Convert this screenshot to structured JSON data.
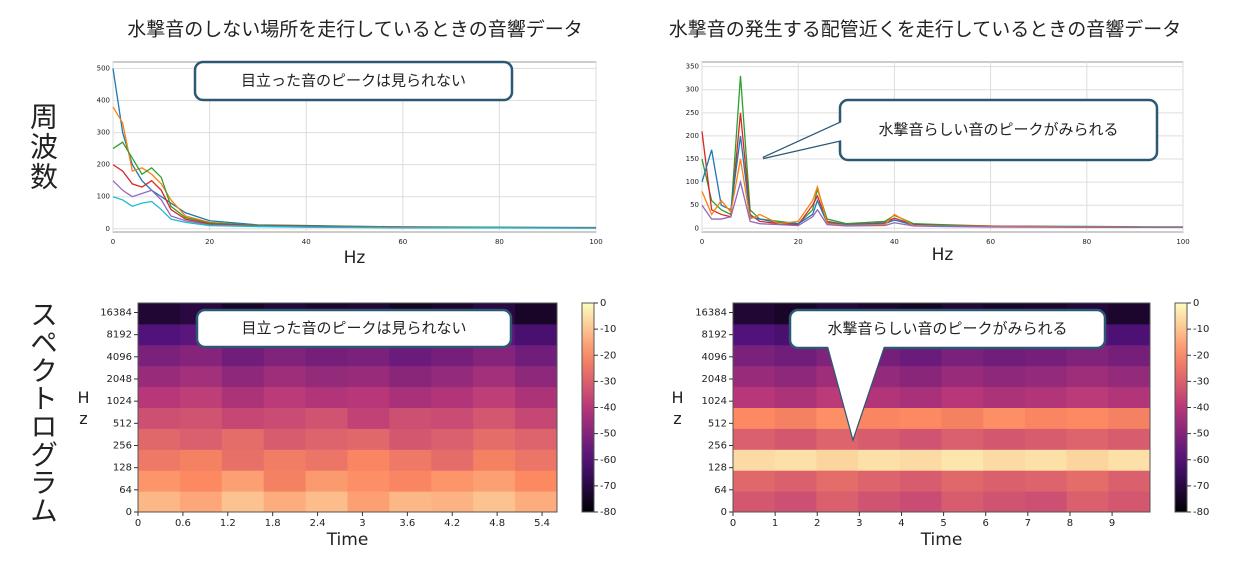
{
  "chart_data": [
    {
      "type": "line",
      "title": "水撃音のしない場所を走行しているときの音響データ",
      "xlabel": "Hz",
      "annotation": "目立った音のピークは見られない",
      "xlim": [
        0,
        100
      ],
      "ylim": [
        -10,
        520
      ],
      "xticks": [
        0,
        20,
        40,
        60,
        80,
        100
      ],
      "yticks": [
        0,
        100,
        200,
        300,
        400,
        500
      ],
      "grid": true,
      "x": [
        0,
        2,
        4,
        6,
        8,
        10,
        12,
        15,
        20,
        30,
        40,
        50,
        60,
        80,
        100
      ],
      "series": [
        {
          "color": "#1f77b4",
          "values": [
            500,
            300,
            200,
            150,
            120,
            100,
            80,
            50,
            25,
            12,
            10,
            8,
            6,
            5,
            4
          ]
        },
        {
          "color": "#ff7f0e",
          "values": [
            380,
            330,
            180,
            190,
            170,
            140,
            90,
            40,
            20,
            10,
            8,
            7,
            6,
            4,
            3
          ]
        },
        {
          "color": "#2ca02c",
          "values": [
            250,
            270,
            220,
            170,
            190,
            160,
            70,
            35,
            18,
            11,
            9,
            7,
            5,
            4,
            3
          ]
        },
        {
          "color": "#d62728",
          "values": [
            200,
            180,
            140,
            130,
            150,
            120,
            60,
            30,
            15,
            9,
            8,
            6,
            5,
            3,
            3
          ]
        },
        {
          "color": "#9467bd",
          "values": [
            150,
            120,
            100,
            110,
            120,
            90,
            40,
            25,
            12,
            8,
            6,
            5,
            4,
            3,
            2
          ]
        },
        {
          "color": "#17becf",
          "values": [
            100,
            90,
            70,
            80,
            85,
            60,
            30,
            20,
            10,
            7,
            5,
            4,
            3,
            3,
            2
          ]
        }
      ]
    },
    {
      "type": "line",
      "title": "水撃音の発生する配管近くを走行しているときの音響データ",
      "xlabel": "Hz",
      "annotation": "水撃音らしい音のピークがみられる",
      "xlim": [
        0,
        100
      ],
      "ylim": [
        -8,
        360
      ],
      "xticks": [
        0,
        20,
        40,
        60,
        80,
        100
      ],
      "yticks": [
        0,
        50,
        100,
        150,
        200,
        250,
        300,
        350
      ],
      "grid": true,
      "x": [
        0,
        2,
        4,
        6,
        8,
        10,
        12,
        16,
        20,
        23,
        24,
        26,
        30,
        38,
        40,
        44,
        50,
        60,
        80,
        100
      ],
      "series": [
        {
          "color": "#2ca02c",
          "values": [
            150,
            60,
            40,
            30,
            330,
            40,
            20,
            15,
            10,
            40,
            85,
            20,
            10,
            15,
            28,
            10,
            8,
            5,
            4,
            3
          ]
        },
        {
          "color": "#d62728",
          "values": [
            210,
            40,
            30,
            25,
            250,
            30,
            15,
            10,
            8,
            50,
            70,
            15,
            8,
            12,
            22,
            8,
            6,
            5,
            3,
            2
          ]
        },
        {
          "color": "#1f77b4",
          "values": [
            100,
            170,
            50,
            40,
            200,
            25,
            20,
            12,
            10,
            30,
            60,
            12,
            8,
            10,
            18,
            7,
            6,
            4,
            3,
            2
          ]
        },
        {
          "color": "#ff7f0e",
          "values": [
            80,
            30,
            60,
            35,
            150,
            20,
            30,
            10,
            15,
            60,
            90,
            10,
            6,
            8,
            30,
            6,
            5,
            4,
            3,
            2
          ]
        },
        {
          "color": "#9467bd",
          "values": [
            50,
            20,
            20,
            25,
            100,
            15,
            10,
            8,
            6,
            25,
            40,
            8,
            5,
            6,
            12,
            5,
            4,
            3,
            2,
            2
          ]
        }
      ]
    },
    {
      "type": "heatmap",
      "xlabel": "Time",
      "ylabel": "Hz",
      "annotation": "目立った音のピークは見られない",
      "xlim": [
        0,
        5.6
      ],
      "ylim": [
        0,
        22050
      ],
      "yscale": "symlog",
      "colormap": "magma",
      "xticks": [
        0,
        0.6,
        1.2,
        1.8,
        2.4,
        3,
        3.6,
        4.2,
        4.8,
        5.4
      ],
      "yticks": [
        0,
        64,
        128,
        256,
        512,
        1024,
        2048,
        4096,
        8192,
        16384
      ],
      "clim": [
        -80,
        0
      ],
      "cticks": [
        0,
        -10,
        -20,
        -30,
        -40,
        -50,
        -60,
        -70,
        -80
      ],
      "z": [
        [
          -12,
          -15,
          -10,
          -14,
          -11,
          -16,
          -12,
          -13,
          -10,
          -14
        ],
        [
          -18,
          -20,
          -16,
          -22,
          -17,
          -19,
          -21,
          -18,
          -16,
          -20
        ],
        [
          -24,
          -22,
          -26,
          -23,
          -25,
          -21,
          -24,
          -27,
          -22,
          -25
        ],
        [
          -28,
          -30,
          -27,
          -31,
          -29,
          -28,
          -32,
          -30,
          -27,
          -29
        ],
        [
          -34,
          -33,
          -36,
          -35,
          -33,
          -37,
          -34,
          -35,
          -32,
          -36
        ],
        [
          -40,
          -38,
          -42,
          -39,
          -41,
          -40,
          -43,
          -41,
          -38,
          -42
        ],
        [
          -46,
          -44,
          -48,
          -45,
          -47,
          -46,
          -49,
          -47,
          -44,
          -48
        ],
        [
          -52,
          -50,
          -54,
          -51,
          -53,
          -52,
          -55,
          -53,
          -50,
          -54
        ],
        [
          -60,
          -58,
          -62,
          -59,
          -61,
          -60,
          -63,
          -61,
          -58,
          -62
        ],
        [
          -72,
          -70,
          -74,
          -71,
          -73,
          -72,
          -75,
          -73,
          -70,
          -74
        ]
      ]
    },
    {
      "type": "heatmap",
      "xlabel": "Time",
      "ylabel": "Hz",
      "annotation": "水撃音らしい音のピークがみられる",
      "xlim": [
        0,
        9.9
      ],
      "ylim": [
        0,
        22050
      ],
      "yscale": "symlog",
      "colormap": "magma",
      "xticks": [
        0,
        1,
        2,
        3,
        4,
        5,
        6,
        7,
        8,
        9
      ],
      "yticks": [
        0,
        64,
        128,
        256,
        512,
        1024,
        2048,
        4096,
        8192,
        16384
      ],
      "clim": [
        -80,
        0
      ],
      "cticks": [
        0,
        -10,
        -20,
        -30,
        -40,
        -50,
        -60,
        -70,
        -80
      ],
      "z": [
        [
          -32,
          -34,
          -30,
          -33,
          -35,
          -31,
          -33,
          -34,
          -30,
          -32
        ],
        [
          -28,
          -30,
          -27,
          -29,
          -31,
          -28,
          -30,
          -29,
          -27,
          -30
        ],
        [
          -6,
          -5,
          -7,
          -5,
          -6,
          -4,
          -6,
          -5,
          -7,
          -5
        ],
        [
          -30,
          -32,
          -29,
          -31,
          -33,
          -30,
          -32,
          -31,
          -29,
          -31
        ],
        [
          -20,
          -22,
          -19,
          -21,
          -20,
          -22,
          -19,
          -21,
          -20,
          -22
        ],
        [
          -40,
          -42,
          -39,
          -41,
          -43,
          -40,
          -42,
          -41,
          -39,
          -41
        ],
        [
          -46,
          -48,
          -45,
          -47,
          -49,
          -46,
          -48,
          -47,
          -45,
          -47
        ],
        [
          -52,
          -54,
          -51,
          -53,
          -55,
          -52,
          -54,
          -53,
          -51,
          -53
        ],
        [
          -60,
          -62,
          -59,
          -61,
          -63,
          -60,
          -62,
          -61,
          -59,
          -61
        ],
        [
          -72,
          -74,
          -71,
          -73,
          -75,
          -72,
          -74,
          -73,
          -71,
          -73
        ]
      ]
    }
  ],
  "row_labels": [
    "周波数",
    "スペクトログラム"
  ]
}
